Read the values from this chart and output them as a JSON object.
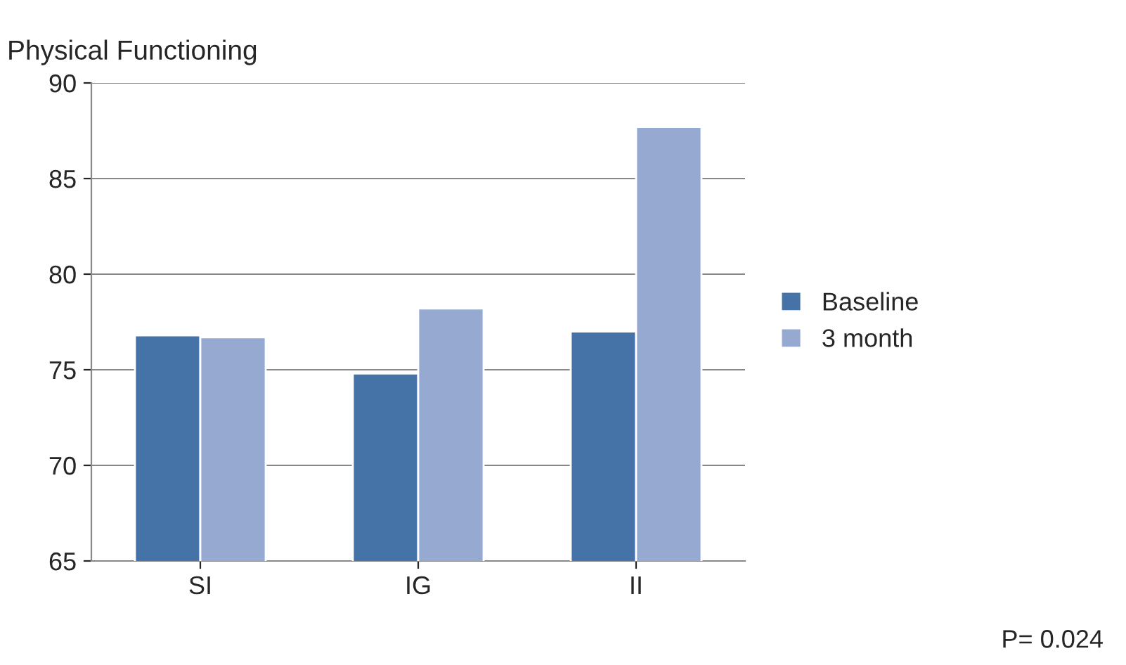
{
  "chart_data": {
    "type": "bar",
    "title": "Physical Functioning",
    "categories": [
      "SI",
      "IG",
      "II"
    ],
    "series": [
      {
        "name": "Baseline",
        "color": "#4572a7",
        "values": [
          76.8,
          74.8,
          77.0
        ]
      },
      {
        "name": "3 month",
        "color": "#95a9d1",
        "values": [
          76.7,
          78.2,
          87.7
        ]
      }
    ],
    "ylim": [
      65,
      90
    ],
    "yticks": [
      65,
      70,
      75,
      80,
      85,
      90
    ],
    "grid": "y",
    "legend": "right",
    "annotations": [
      "P= 0.024"
    ]
  }
}
